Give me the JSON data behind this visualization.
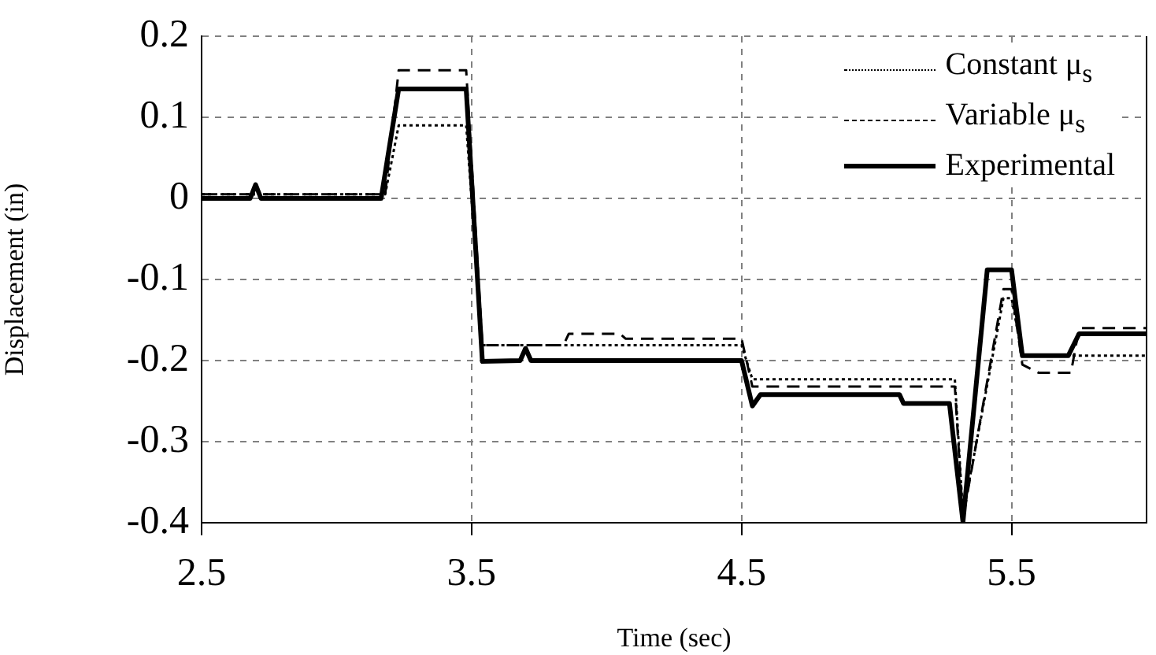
{
  "chart_data": {
    "type": "line",
    "xlabel": "Time (sec)",
    "ylabel": "Displacement (in)",
    "xlim": [
      2.5,
      6.0
    ],
    "xticks": [
      2.5,
      3.5,
      4.5,
      5.5
    ],
    "ylim": [
      -0.4,
      0.2
    ],
    "yticks": [
      -0.4,
      -0.3,
      -0.2,
      -0.1,
      0,
      0.1,
      0.2
    ],
    "grid": true,
    "legend": "top right",
    "marker": "none",
    "series": [
      {
        "name": "Constant μ$_{s}$",
        "color": "#000000",
        "line_style": "dotted",
        "x": [
          2.5,
          3.18,
          3.23,
          3.48,
          3.54,
          4.5,
          4.54,
          5.29,
          5.32,
          5.47,
          5.5,
          5.54,
          6.0
        ],
        "values": [
          0.005,
          0.005,
          0.09,
          0.09,
          -0.181,
          -0.181,
          -0.223,
          -0.223,
          -0.39,
          -0.123,
          -0.123,
          -0.194,
          -0.194
        ]
      },
      {
        "name": "Variable μ$_{s}$",
        "color": "#000000",
        "line_style": "dashed",
        "x": [
          2.5,
          3.18,
          3.23,
          3.48,
          3.54,
          3.84,
          3.86,
          4.05,
          4.07,
          4.5,
          4.54,
          5.29,
          5.32,
          5.47,
          5.5,
          5.54,
          5.6,
          5.72,
          5.75,
          6.0
        ],
        "values": [
          0.005,
          0.005,
          0.158,
          0.158,
          -0.181,
          -0.181,
          -0.167,
          -0.167,
          -0.173,
          -0.173,
          -0.232,
          -0.232,
          -0.395,
          -0.112,
          -0.112,
          -0.205,
          -0.215,
          -0.215,
          -0.16,
          -0.16
        ]
      },
      {
        "name": "Experimental",
        "color": "#000000",
        "line_style": "solid",
        "x": [
          2.5,
          2.68,
          2.7,
          2.72,
          3.165,
          3.23,
          3.48,
          3.54,
          3.68,
          3.7,
          3.72,
          4.5,
          4.54,
          4.57,
          5.085,
          5.1,
          5.27,
          5.32,
          5.41,
          5.5,
          5.54,
          5.71,
          5.75,
          6.0
        ],
        "values": [
          0,
          0,
          0.017,
          0,
          0,
          0.135,
          0.135,
          -0.201,
          -0.2,
          -0.185,
          -0.2,
          -0.2,
          -0.256,
          -0.242,
          -0.242,
          -0.253,
          -0.253,
          -0.399,
          -0.088,
          -0.088,
          -0.194,
          -0.194,
          -0.167,
          -0.167
        ]
      }
    ]
  }
}
